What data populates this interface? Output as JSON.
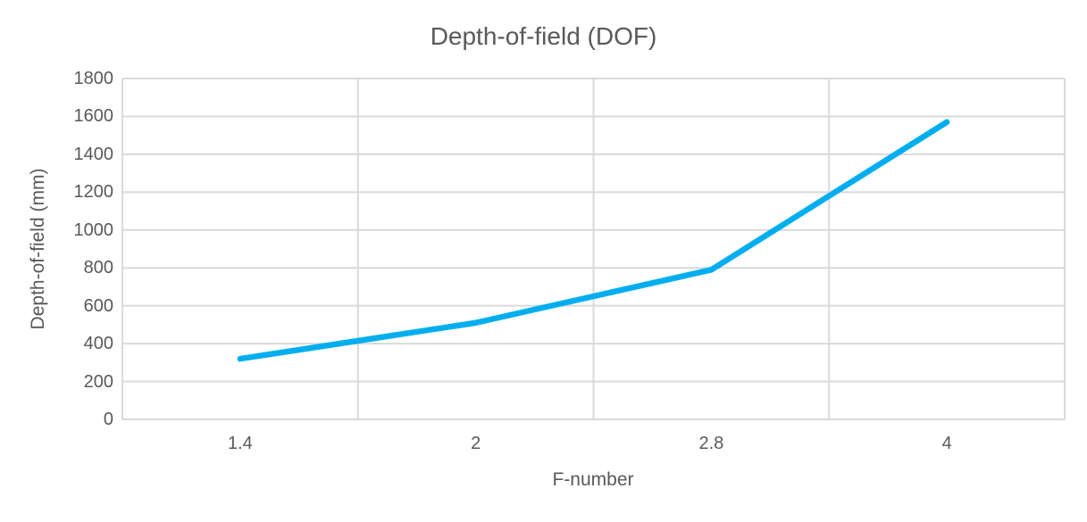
{
  "chart_data": {
    "type": "line",
    "title": "Depth-of-field (DOF)",
    "xlabel": "F-number",
    "ylabel": "Depth-of-field (mm)",
    "categories": [
      "1.4",
      "2",
      "2.8",
      "4"
    ],
    "series": [
      {
        "name": "Depth-of-field (mm)",
        "values": [
          320,
          510,
          790,
          1570
        ],
        "color": "#00aeef"
      }
    ],
    "ylim": [
      0,
      1800
    ],
    "ytick_step": 200,
    "yticks": [
      0,
      200,
      400,
      600,
      800,
      1000,
      1200,
      1400,
      1600,
      1800
    ],
    "grid": {
      "horizontal": true,
      "vertical_category_boundaries": true,
      "color": "#d9d9d9"
    },
    "legend": "none",
    "text_color": "#595959",
    "background": "#ffffff"
  }
}
